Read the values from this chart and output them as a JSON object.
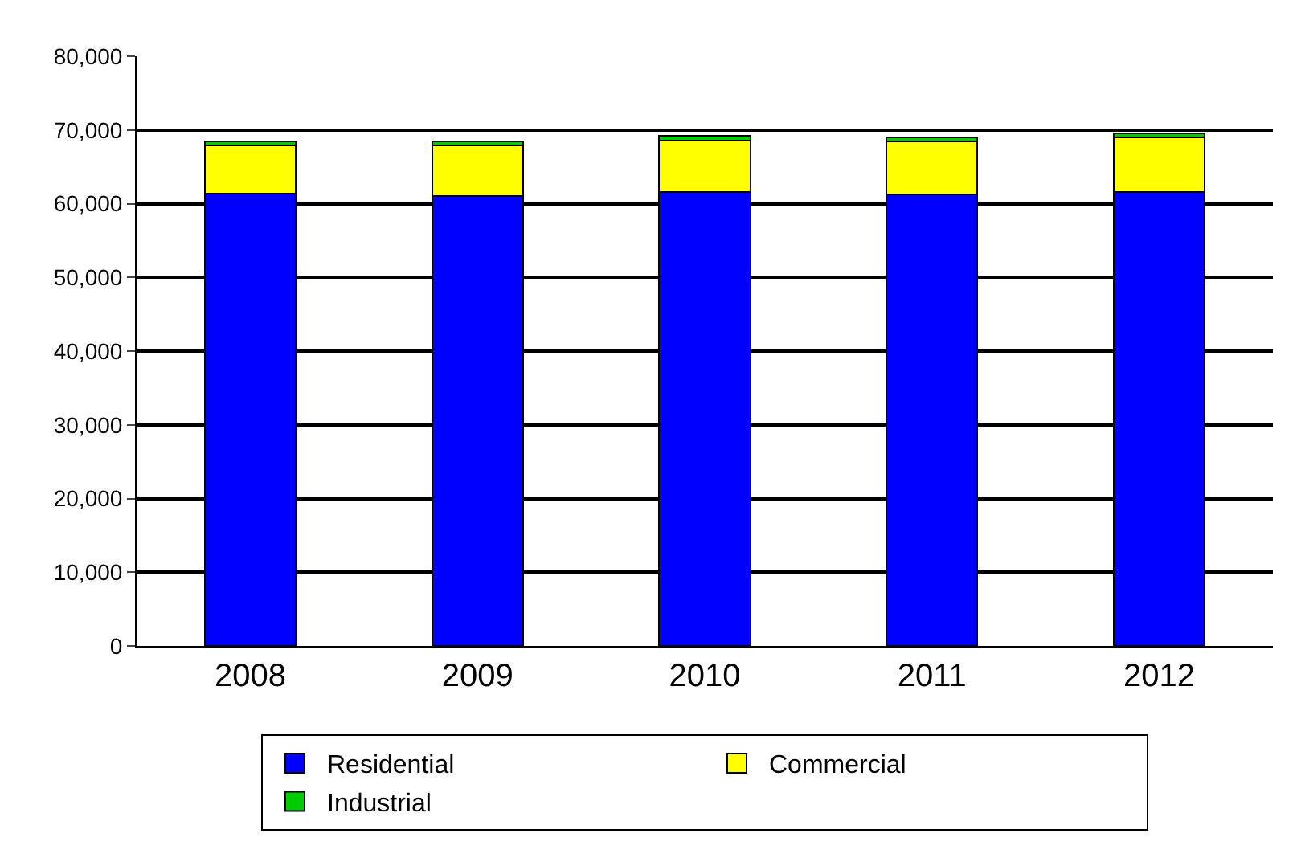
{
  "chart_data": {
    "type": "bar",
    "stacked": true,
    "categories": [
      "2008",
      "2009",
      "2010",
      "2011",
      "2012"
    ],
    "series": [
      {
        "name": "Residential",
        "color": "#0000ff",
        "values": [
          61400,
          61000,
          61600,
          61300,
          61600
        ]
      },
      {
        "name": "Commercial",
        "color": "#ffff00",
        "values": [
          6500,
          6900,
          7000,
          7100,
          7400
        ]
      },
      {
        "name": "Industrial",
        "color": "#00cc00",
        "values": [
          600,
          600,
          600,
          600,
          500
        ]
      }
    ],
    "ylim": [
      0,
      80000
    ],
    "yticks": [
      {
        "value": 0,
        "label": "0"
      },
      {
        "value": 10000,
        "label": "10,000"
      },
      {
        "value": 20000,
        "label": "20,000"
      },
      {
        "value": 30000,
        "label": "30,000"
      },
      {
        "value": 40000,
        "label": "40,000"
      },
      {
        "value": 50000,
        "label": "50,000"
      },
      {
        "value": 60000,
        "label": "60,000"
      },
      {
        "value": 70000,
        "label": "70,000"
      },
      {
        "value": 80000,
        "label": "80,000"
      }
    ],
    "grid": "y",
    "legend": "bottom"
  }
}
